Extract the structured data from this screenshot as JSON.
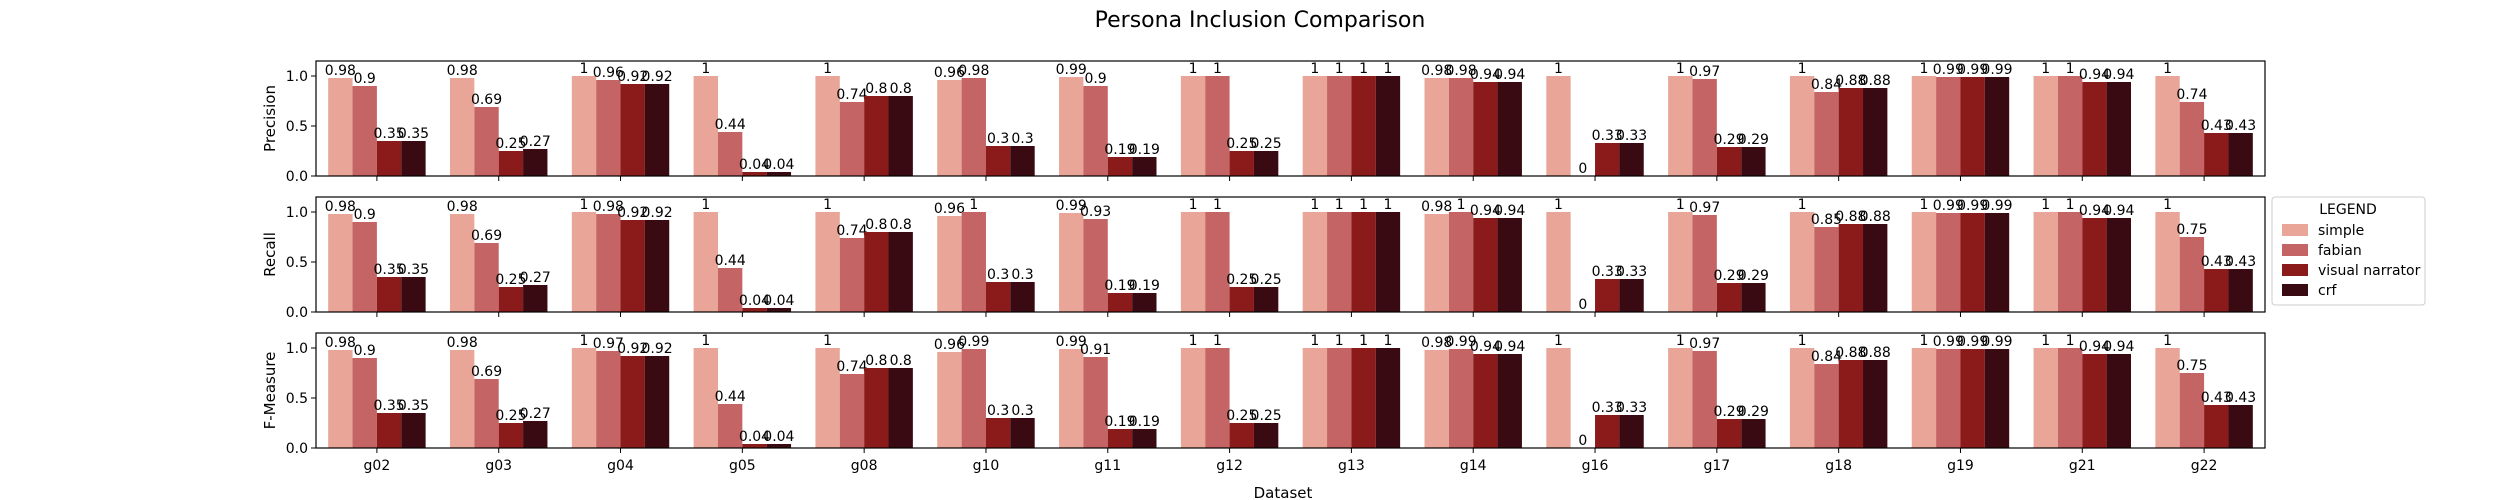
{
  "chart_data": {
    "type": "bar",
    "title": "Persona Inclusion Comparison",
    "xlabel": "Dataset",
    "categories": [
      "g02",
      "g03",
      "g04",
      "g05",
      "g08",
      "g10",
      "g11",
      "g12",
      "g13",
      "g14",
      "g16",
      "g17",
      "g18",
      "g19",
      "g21",
      "g22"
    ],
    "legend": {
      "title": "LEGEND",
      "placement": "right",
      "entries": [
        "simple",
        "fabian",
        "visual narrator",
        "crf"
      ]
    },
    "colors": [
      "#e8a598",
      "#c46464",
      "#8b1a1a",
      "#3a0a12"
    ],
    "ylim": [
      0,
      1.15
    ],
    "yticks": [
      "0.0",
      "0.5",
      "1.0"
    ],
    "panels": [
      {
        "ylabel": "Precision",
        "series": [
          {
            "name": "simple",
            "values": [
              0.98,
              0.98,
              1,
              1,
              1,
              0.96,
              0.99,
              1,
              1,
              0.98,
              1,
              1,
              1,
              1,
              1,
              1
            ]
          },
          {
            "name": "fabian",
            "values": [
              0.9,
              0.69,
              0.96,
              0.44,
              0.74,
              0.98,
              0.9,
              1,
              1,
              0.98,
              0,
              0.97,
              0.84,
              0.99,
              1,
              0.74
            ]
          },
          {
            "name": "visual narrator",
            "values": [
              0.35,
              0.25,
              0.92,
              0.04,
              0.8,
              0.3,
              0.19,
              0.25,
              1,
              0.94,
              0.33,
              0.29,
              0.88,
              0.99,
              0.94,
              0.43
            ]
          },
          {
            "name": "crf",
            "values": [
              0.35,
              0.27,
              0.92,
              0.04,
              0.8,
              0.3,
              0.19,
              0.25,
              1,
              0.94,
              0.33,
              0.29,
              0.88,
              0.99,
              0.94,
              0.43
            ]
          }
        ]
      },
      {
        "ylabel": "Recall",
        "series": [
          {
            "name": "simple",
            "values": [
              0.98,
              0.98,
              1,
              1,
              1,
              0.96,
              0.99,
              1,
              1,
              0.98,
              1,
              1,
              1,
              1,
              1,
              1
            ]
          },
          {
            "name": "fabian",
            "values": [
              0.9,
              0.69,
              0.98,
              0.44,
              0.74,
              1,
              0.93,
              1,
              1,
              1,
              0,
              0.97,
              0.85,
              0.99,
              1,
              0.75
            ]
          },
          {
            "name": "visual narrator",
            "values": [
              0.35,
              0.25,
              0.92,
              0.04,
              0.8,
              0.3,
              0.19,
              0.25,
              1,
              0.94,
              0.33,
              0.29,
              0.88,
              0.99,
              0.94,
              0.43
            ]
          },
          {
            "name": "crf",
            "values": [
              0.35,
              0.27,
              0.92,
              0.04,
              0.8,
              0.3,
              0.19,
              0.25,
              1,
              0.94,
              0.33,
              0.29,
              0.88,
              0.99,
              0.94,
              0.43
            ]
          }
        ]
      },
      {
        "ylabel": "F-Measure",
        "series": [
          {
            "name": "simple",
            "values": [
              0.98,
              0.98,
              1,
              1,
              1,
              0.96,
              0.99,
              1,
              1,
              0.98,
              1,
              1,
              1,
              1,
              1,
              1
            ]
          },
          {
            "name": "fabian",
            "values": [
              0.9,
              0.69,
              0.97,
              0.44,
              0.74,
              0.99,
              0.91,
              1,
              1,
              0.99,
              0,
              0.97,
              0.84,
              0.99,
              1,
              0.75
            ]
          },
          {
            "name": "visual narrator",
            "values": [
              0.35,
              0.25,
              0.92,
              0.04,
              0.8,
              0.3,
              0.19,
              0.25,
              1,
              0.94,
              0.33,
              0.29,
              0.88,
              0.99,
              0.94,
              0.43
            ]
          },
          {
            "name": "crf",
            "values": [
              0.35,
              0.27,
              0.92,
              0.04,
              0.8,
              0.3,
              0.19,
              0.25,
              1,
              0.94,
              0.33,
              0.29,
              0.88,
              0.99,
              0.94,
              0.43
            ]
          }
        ]
      }
    ]
  }
}
